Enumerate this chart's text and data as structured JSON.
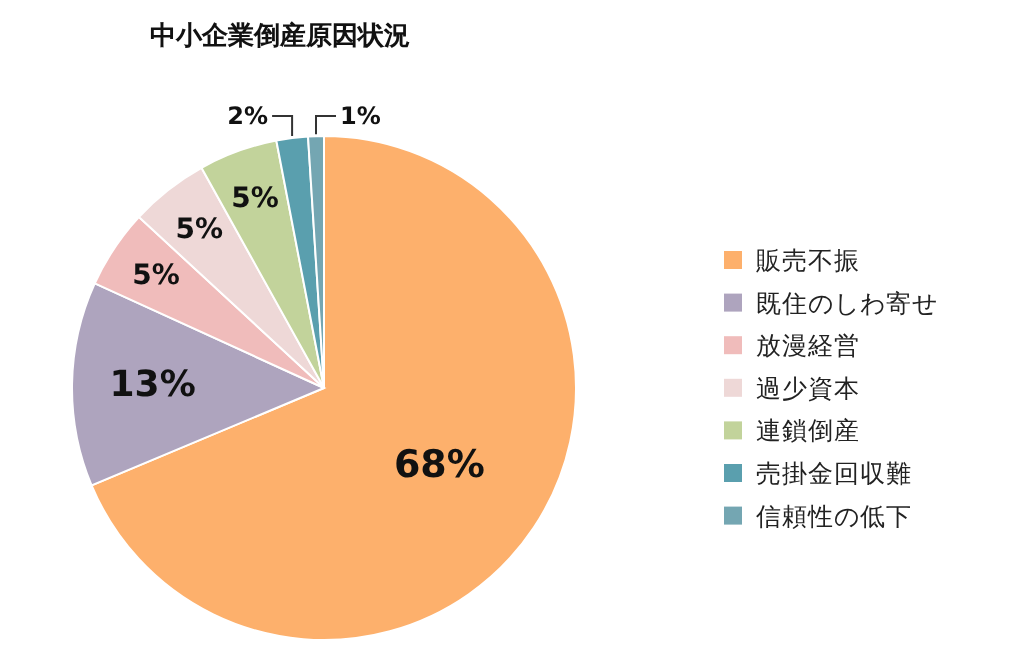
{
  "chart_data": {
    "type": "pie",
    "title": "中小企業倒産原因状況",
    "categories": [
      "販売不振",
      "既住のしわ寄せ",
      "放漫経営",
      "過少資本",
      "連鎖倒産",
      "売掛金回収難",
      "信頼性の低下"
    ],
    "values": [
      68,
      13,
      5,
      5,
      5,
      2,
      1
    ],
    "colors": [
      "#fdb06c",
      "#aea4be",
      "#f0bcbb",
      "#eed8d7",
      "#c2d39b",
      "#5a9fae",
      "#74a6b2"
    ],
    "value_labels": [
      "68%",
      "13%",
      "5%",
      "5%",
      "5%",
      "2%",
      "1%"
    ],
    "legend": "right"
  }
}
